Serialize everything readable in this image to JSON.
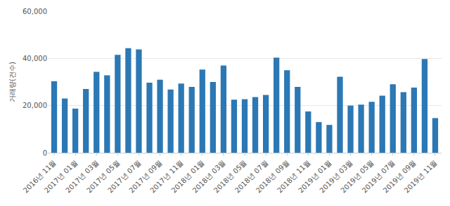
{
  "chart_data": {
    "type": "bar",
    "y_label": "거래량(건수)",
    "categories": [
      "2016년 11월",
      null,
      "2017년 01월",
      null,
      "2017년 03월",
      null,
      "2017년 05월",
      null,
      "2017년 07월",
      null,
      "2017년 09월",
      null,
      "2017년 11월",
      null,
      "2018년 01월",
      null,
      "2018년 03월",
      null,
      "2018년 05월",
      null,
      "2018년 07월",
      null,
      "2018년 09월",
      null,
      "2018년 11월",
      null,
      "2019년 01월",
      null,
      "2019년 03월",
      null,
      "2019년 05월",
      null,
      "2019년 07월",
      null,
      "2019년 09월",
      null,
      "2019년 11월"
    ],
    "values": [
      30300,
      23000,
      18700,
      27000,
      34300,
      32800,
      41500,
      44300,
      43800,
      29700,
      31000,
      26800,
      29300,
      27900,
      35300,
      30000,
      37000,
      22500,
      22700,
      23600,
      24500,
      40300,
      35000,
      27900,
      17500,
      13000,
      11800,
      32200,
      20000,
      20400,
      21600,
      24200,
      29000,
      25700,
      27600,
      39700,
      14700
    ],
    "color": "#2b78b5",
    "ylim": [
      0,
      60000
    ],
    "yticks": [
      {
        "value": 0,
        "label": "0"
      },
      {
        "value": 20000,
        "label": "20,000"
      },
      {
        "value": 40000,
        "label": "40,000"
      },
      {
        "value": 60000,
        "label": "60,000"
      }
    ],
    "grid": true
  }
}
